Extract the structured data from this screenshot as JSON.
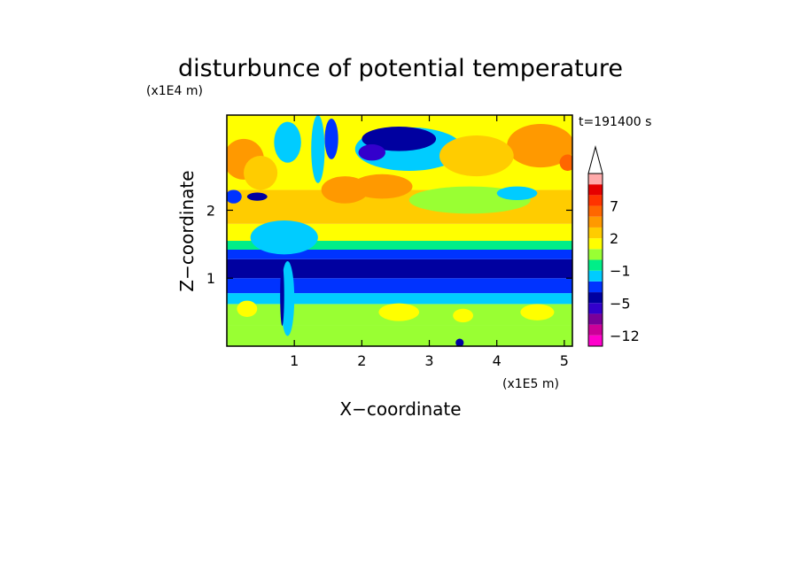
{
  "chart_data": {
    "type": "heatmap",
    "title": "disturbunce of potential temperature",
    "xlabel": "X−coordinate",
    "ylabel": "Z−coordinate",
    "x_unit": "(x1E5 m)",
    "y_unit": "(x1E4 m)",
    "time_label": "t=191400 s",
    "xlim": [
      0,
      5.12
    ],
    "ylim": [
      0,
      3.4
    ],
    "x_ticks": [
      1,
      2,
      3,
      4,
      5
    ],
    "y_ticks": [
      1,
      2
    ],
    "colorbar": {
      "tick_labels": [
        {
          "value": 7,
          "label": "7"
        },
        {
          "value": 2,
          "label": "2"
        },
        {
          "value": -1,
          "label": "−1"
        },
        {
          "value": -5,
          "label": "−5"
        },
        {
          "value": -12,
          "label": "−12"
        }
      ],
      "levels": [
        {
          "lo": -14,
          "hi": -12,
          "color": "#ff00cc"
        },
        {
          "lo": -12,
          "hi": -9,
          "color": "#cc0099"
        },
        {
          "lo": -9,
          "hi": -7,
          "color": "#7a0099"
        },
        {
          "lo": -7,
          "hi": -5,
          "color": "#3300cc"
        },
        {
          "lo": -5,
          "hi": -3,
          "color": "#0000a0"
        },
        {
          "lo": -3,
          "hi": -2,
          "color": "#0033ff"
        },
        {
          "lo": -2,
          "hi": -1,
          "color": "#00ccff"
        },
        {
          "lo": -1,
          "hi": 0,
          "color": "#00ee88"
        },
        {
          "lo": 0,
          "hi": 1,
          "color": "#99ff33"
        },
        {
          "lo": 1,
          "hi": 2,
          "color": "#ffff00"
        },
        {
          "lo": 2,
          "hi": 3,
          "color": "#ffcc00"
        },
        {
          "lo": 3,
          "hi": 5,
          "color": "#ff9900"
        },
        {
          "lo": 5,
          "hi": 7,
          "color": "#ff6600"
        },
        {
          "lo": 7,
          "hi": 9,
          "color": "#ff3300"
        },
        {
          "lo": 9,
          "hi": 11,
          "color": "#e60000"
        },
        {
          "lo": 11,
          "hi": 14,
          "color": "#ffaaaa"
        }
      ],
      "extend_max": true
    },
    "horizontal_bands": [
      {
        "z_from": 0.0,
        "z_to": 0.3,
        "value": 0.5
      },
      {
        "z_from": 0.3,
        "z_to": 0.62,
        "value": 0.6
      },
      {
        "z_from": 0.62,
        "z_to": 0.78,
        "value": -1.5
      },
      {
        "z_from": 0.78,
        "z_to": 1.0,
        "value": -2.5
      },
      {
        "z_from": 1.0,
        "z_to": 1.28,
        "value": -4
      },
      {
        "z_from": 1.28,
        "z_to": 1.42,
        "value": -2.5
      },
      {
        "z_from": 1.42,
        "z_to": 1.55,
        "value": -0.5
      },
      {
        "z_from": 1.55,
        "z_to": 1.8,
        "value": 1.5
      },
      {
        "z_from": 1.8,
        "z_to": 2.3,
        "value": 2.5
      },
      {
        "z_from": 2.3,
        "z_to": 3.4,
        "value": 1.5
      }
    ],
    "features": [
      {
        "x": 0.25,
        "z": 2.75,
        "rx": 0.3,
        "rz": 0.3,
        "value": 4
      },
      {
        "x": 0.5,
        "z": 2.55,
        "rx": 0.25,
        "rz": 0.25,
        "value": 2.5
      },
      {
        "x": 0.9,
        "z": 3.0,
        "rx": 0.2,
        "rz": 0.3,
        "value": -1.5
      },
      {
        "x": 1.35,
        "z": 2.9,
        "rx": 0.1,
        "rz": 0.5,
        "value": -1.5
      },
      {
        "x": 1.55,
        "z": 3.05,
        "rx": 0.1,
        "rz": 0.3,
        "value": -2.5
      },
      {
        "x": 2.7,
        "z": 2.9,
        "rx": 0.8,
        "rz": 0.32,
        "value": -1.5
      },
      {
        "x": 2.55,
        "z": 3.05,
        "rx": 0.55,
        "rz": 0.18,
        "value": -3.5
      },
      {
        "x": 2.15,
        "z": 2.85,
        "rx": 0.2,
        "rz": 0.12,
        "value": -6
      },
      {
        "x": 4.65,
        "z": 2.95,
        "rx": 0.5,
        "rz": 0.32,
        "value": 4
      },
      {
        "x": 5.05,
        "z": 2.7,
        "rx": 0.12,
        "rz": 0.12,
        "value": 6
      },
      {
        "x": 3.7,
        "z": 2.8,
        "rx": 0.55,
        "rz": 0.3,
        "value": 2.5
      },
      {
        "x": 2.3,
        "z": 2.35,
        "rx": 0.45,
        "rz": 0.18,
        "value": 4
      },
      {
        "x": 1.75,
        "z": 2.3,
        "rx": 0.35,
        "rz": 0.2,
        "value": 3
      },
      {
        "x": 3.6,
        "z": 2.15,
        "rx": 0.9,
        "rz": 0.2,
        "value": 0.8
      },
      {
        "x": 4.3,
        "z": 2.25,
        "rx": 0.3,
        "rz": 0.1,
        "value": -1.2
      },
      {
        "x": 0.1,
        "z": 2.2,
        "rx": 0.12,
        "rz": 0.1,
        "value": -2.5
      },
      {
        "x": 0.45,
        "z": 2.2,
        "rx": 0.15,
        "rz": 0.06,
        "value": -4
      },
      {
        "x": 0.85,
        "z": 1.6,
        "rx": 0.5,
        "rz": 0.25,
        "value": -1.5
      },
      {
        "x": 0.9,
        "z": 0.7,
        "rx": 0.1,
        "rz": 0.55,
        "value": -1.5
      },
      {
        "x": 0.82,
        "z": 0.75,
        "rx": 0.03,
        "rz": 0.45,
        "value": -4
      },
      {
        "x": 2.55,
        "z": 0.5,
        "rx": 0.3,
        "rz": 0.13,
        "value": 1.5
      },
      {
        "x": 4.6,
        "z": 0.5,
        "rx": 0.25,
        "rz": 0.12,
        "value": 1.5
      },
      {
        "x": 3.5,
        "z": 0.45,
        "rx": 0.15,
        "rz": 0.1,
        "value": 1.3
      },
      {
        "x": 0.3,
        "z": 0.55,
        "rx": 0.15,
        "rz": 0.12,
        "value": 1.5
      },
      {
        "x": 3.45,
        "z": 0.05,
        "rx": 0.06,
        "rz": 0.06,
        "value": -4
      }
    ],
    "grid": false
  }
}
